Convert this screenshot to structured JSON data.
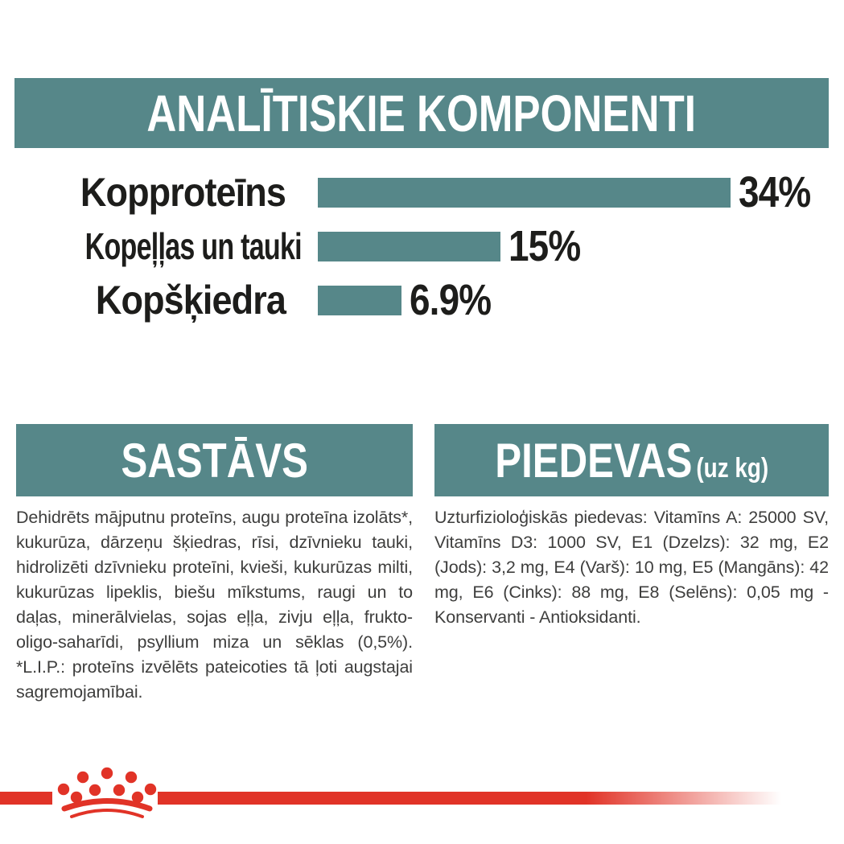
{
  "colors": {
    "teal": "#568789",
    "red": "#e13327",
    "body_text": "#3e3e3d",
    "chart_text": "#1d1d1b",
    "background": "#ffffff"
  },
  "analytics": {
    "title": "ANALĪTISKIE KOMPONENTI"
  },
  "chart_data": {
    "type": "bar",
    "orientation": "horizontal",
    "title": "ANALĪTISKIE KOMPONENTI",
    "categories": [
      "Kopproteīns",
      "Kopeļļas un tauki",
      "Kopšķiedra"
    ],
    "values": [
      34,
      15,
      6.9
    ],
    "value_labels": [
      "34%",
      "15%",
      "6.9%"
    ],
    "unit": "%",
    "xlim": [
      0,
      34
    ],
    "bar_color": "#568789",
    "grid": false,
    "legend": false
  },
  "composition": {
    "title": "SASTĀVS",
    "body": "Dehidrēts mājputnu proteīns, augu proteīna izolāts*, kukurūza, dārzeņu šķiedras, rīsi, dzīvnieku tauki, hidrolizēti dzīvnieku proteīni, kvieši, kukurūzas milti, kukurūzas lipeklis, biešu mīkstums, raugi un to daļas, minerālvielas, sojas eļļa, zivju eļļa, frukto-oligo-saharīdi, psyllium miza un sēklas (0,5%). *L.I.P.: proteīns izvēlēts pateicoties tā ļoti augstajai sagremojamībai."
  },
  "additives": {
    "title": "PIEDEVAS",
    "title_suffix": "(uz kg)",
    "body": "Uzturfizioloģiskās piedevas: Vitamīns A: 25000 SV, Vitamīns D3: 1000 SV, E1 (Dzelzs): 32 mg, E2 (Jods): 3,2 mg, E4 (Varš): 10 mg, E5 (Mangāns): 42 mg, E6 (Cinks): 88 mg, E8 (Selēns): 0,05 mg - Konservanti - Antioksidanti."
  },
  "brand": {
    "logo_icon": "royal-canin-crown-icon"
  }
}
